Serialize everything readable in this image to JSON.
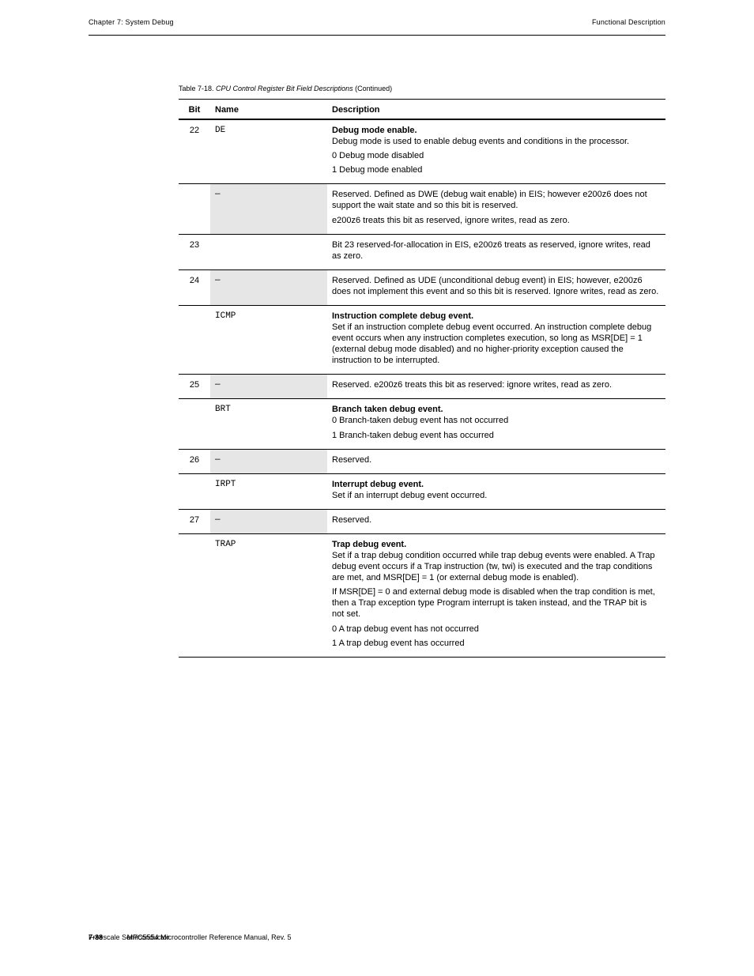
{
  "page": {
    "running_header_left": "Chapter 7: System Debug",
    "running_header_right": "Functional Description",
    "footer_page": "7-38",
    "footer_center": "MPC5554 Microcontroller Reference Manual, Rev. 5",
    "footer_right": "Freescale Semiconductor"
  },
  "table": {
    "caption_prefix": "Table 7-18. ",
    "caption_title": "CPU Control Register Bit Field Descriptions",
    "caption_suffix": " (Continued)",
    "columns": [
      "Bit",
      "Name",
      "Description"
    ],
    "shaded_name_bg": "#e6e6e6",
    "rows": [
      {
        "bit": "22",
        "name": "DE",
        "shaded": false,
        "group_top": true,
        "desc_title": "Debug mode enable.",
        "desc_lines": [
          "Debug mode is used to enable debug events and conditions in the processor.",
          "0  Debug mode disabled",
          "1  Debug mode enabled"
        ]
      },
      {
        "bit": "",
        "name": "—",
        "shaded": true,
        "group_top": false,
        "desc_title": "",
        "desc_lines": [
          "Reserved. Defined as DWE (debug wait enable) in EIS; however e200z6 does not support the wait state and so this bit is reserved.",
          "e200z6 treats this bit as reserved, ignore writes, read as zero."
        ]
      },
      {
        "bit": "23",
        "name": "",
        "shaded": false,
        "group_top": false,
        "desc_title": "",
        "desc_lines": [
          "Bit 23 reserved-for-allocation in EIS, e200z6 treats as reserved, ignore writes, read as zero."
        ]
      },
      {
        "bit": "24",
        "name": "—",
        "shaded": true,
        "group_top": true,
        "desc_title": "",
        "desc_lines": [
          "Reserved. Defined as UDE (unconditional debug event) in EIS; however, e200z6 does not implement this event and so this bit is reserved. Ignore writes, read as zero."
        ]
      },
      {
        "bit": "",
        "name": "ICMP",
        "shaded": false,
        "group_top": false,
        "desc_title": "Instruction complete debug event.",
        "desc_lines": [
          "Set if an instruction complete debug event occurred. An instruction complete debug event occurs when any instruction completes execution, so long as MSR[DE] = 1 (external debug mode disabled) and no higher-priority exception caused the instruction to be interrupted."
        ]
      },
      {
        "bit": "25",
        "name": "—",
        "shaded": true,
        "group_top": true,
        "desc_title": "",
        "desc_lines": [
          "Reserved. e200z6 treats this bit as reserved: ignore writes, read as zero."
        ]
      },
      {
        "bit": "",
        "name": "BRT",
        "shaded": false,
        "group_top": false,
        "desc_title": "Branch taken debug event.",
        "desc_lines": [
          "0  Branch-taken debug event has not occurred",
          "1  Branch-taken debug event has occurred"
        ]
      },
      {
        "bit": "26",
        "name": "—",
        "shaded": true,
        "group_top": true,
        "desc_title": "",
        "desc_lines": [
          "Reserved."
        ]
      },
      {
        "bit": "",
        "name": "IRPT",
        "shaded": false,
        "group_top": false,
        "desc_title": "Interrupt debug event.",
        "desc_lines": [
          "Set if an interrupt debug event occurred."
        ]
      },
      {
        "bit": "27",
        "name": "—",
        "shaded": true,
        "group_top": true,
        "desc_title": "",
        "desc_lines": [
          "Reserved."
        ]
      },
      {
        "bit": "",
        "name": "TRAP",
        "shaded": false,
        "group_top": false,
        "last": true,
        "desc_title": "Trap debug event.",
        "desc_lines": [
          "Set if a trap debug condition occurred while trap debug events were enabled. A Trap debug event occurs if a Trap instruction (tw, twi) is executed and the trap conditions are met, and MSR[DE] = 1 (or external debug mode is enabled).",
          "If MSR[DE] = 0 and external debug mode is disabled when the trap condition is met, then a Trap exception type Program interrupt is taken instead, and the TRAP bit is not set.",
          "0  A trap debug event has not occurred",
          "1  A trap debug event has occurred"
        ]
      }
    ]
  }
}
